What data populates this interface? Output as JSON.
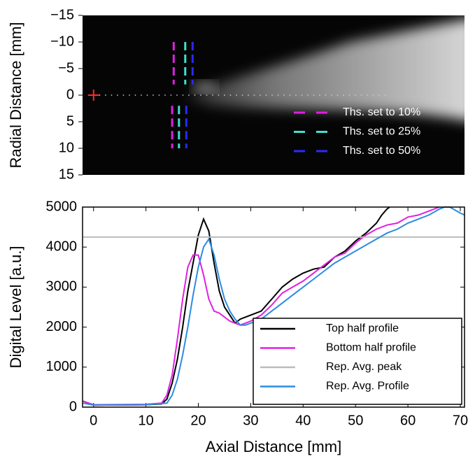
{
  "chart_data": [
    {
      "type": "image",
      "ylabel": "Radial Distance [mm]",
      "xlim": [
        -2.1,
        70.8
      ],
      "ylim": [
        -15,
        15
      ],
      "y_inverted": true,
      "yticks": [
        {
          "value": -15,
          "label": "−15"
        },
        {
          "value": -10,
          "label": "−10"
        },
        {
          "value": -5,
          "label": "−5"
        },
        0,
        5,
        10,
        15
      ],
      "marker": {
        "x": 0,
        "y": 0,
        "color": "#ff2a2a"
      },
      "thresholds": [
        {
          "name": "Ths. set to 10%",
          "color": "#e020e0",
          "x_top": 15.3,
          "x_bottom": 15.0
        },
        {
          "name": "Ths. set to 25%",
          "color": "#40e0d0",
          "x_top": 17.5,
          "x_bottom": 16.3
        },
        {
          "name": "Ths. set to 50%",
          "color": "#2a2aff",
          "x_top": 18.9,
          "x_bottom": 17.7
        }
      ]
    },
    {
      "type": "line",
      "xlabel": "Axial Distance [mm]",
      "ylabel": "Digital Level [a.u.]",
      "xlim": [
        -2.1,
        70.8
      ],
      "ylim": [
        0,
        5000
      ],
      "xticks": [
        0,
        10,
        20,
        30,
        40,
        50,
        60,
        70
      ],
      "yticks": [
        0,
        1000,
        2000,
        3000,
        4000,
        5000
      ],
      "series": [
        {
          "name": "Top half profile",
          "color": "#000000",
          "x": [
            -2,
            0,
            10,
            13,
            14,
            15,
            16,
            17,
            18,
            19,
            20,
            21,
            22,
            23,
            24,
            25,
            26,
            27,
            28,
            29,
            30,
            32,
            34,
            36,
            38,
            40,
            42,
            44,
            46,
            48,
            50,
            52,
            54,
            55,
            56,
            56.5
          ],
          "values": [
            150,
            50,
            60,
            80,
            200,
            600,
            1200,
            2000,
            2900,
            3600,
            4300,
            4700,
            4400,
            3600,
            2900,
            2500,
            2300,
            2100,
            2200,
            2250,
            2300,
            2400,
            2700,
            3000,
            3200,
            3350,
            3450,
            3500,
            3750,
            3900,
            4150,
            4350,
            4600,
            4800,
            4950,
            5000
          ]
        },
        {
          "name": "Bottom half profile",
          "color": "#e020e0",
          "x": [
            -2,
            0,
            10,
            13,
            14,
            15,
            16,
            17,
            18,
            19,
            20,
            21,
            22,
            23,
            24,
            25,
            26,
            27,
            28,
            29,
            30,
            32,
            34,
            36,
            38,
            40,
            42,
            44,
            46,
            48,
            50,
            52,
            54,
            56,
            58,
            60,
            62,
            64,
            66
          ],
          "values": [
            150,
            60,
            70,
            100,
            300,
            800,
            1700,
            2700,
            3500,
            3800,
            3800,
            3300,
            2700,
            2400,
            2350,
            2250,
            2150,
            2100,
            2050,
            2100,
            2150,
            2300,
            2550,
            2850,
            3000,
            3150,
            3350,
            3550,
            3750,
            3850,
            4100,
            4300,
            4450,
            4550,
            4600,
            4750,
            4800,
            4900,
            5000
          ]
        },
        {
          "name": "Rep. Avg. peak",
          "color": "#bbbbbb",
          "x": [
            -2.1,
            70.8
          ],
          "values": [
            4250,
            4250
          ]
        },
        {
          "name": "Rep. Avg. Profile",
          "color": "#2b8ce0",
          "x": [
            -2,
            0,
            10,
            14,
            15,
            16,
            17,
            18,
            19,
            20,
            21,
            22,
            23,
            24,
            25,
            26,
            27,
            28,
            29,
            30,
            32,
            34,
            36,
            38,
            40,
            42,
            44,
            46,
            48,
            50,
            52,
            54,
            56,
            58,
            60,
            62,
            64,
            66,
            67,
            68,
            70,
            70.8
          ],
          "values": [
            100,
            50,
            60,
            100,
            300,
            700,
            1300,
            2000,
            2800,
            3500,
            4000,
            4200,
            3800,
            3200,
            2700,
            2400,
            2200,
            2050,
            2050,
            2100,
            2200,
            2400,
            2600,
            2800,
            3000,
            3200,
            3400,
            3600,
            3750,
            3900,
            4050,
            4200,
            4350,
            4450,
            4600,
            4700,
            4800,
            4950,
            5000,
            5000,
            4850,
            4800
          ]
        }
      ]
    }
  ]
}
